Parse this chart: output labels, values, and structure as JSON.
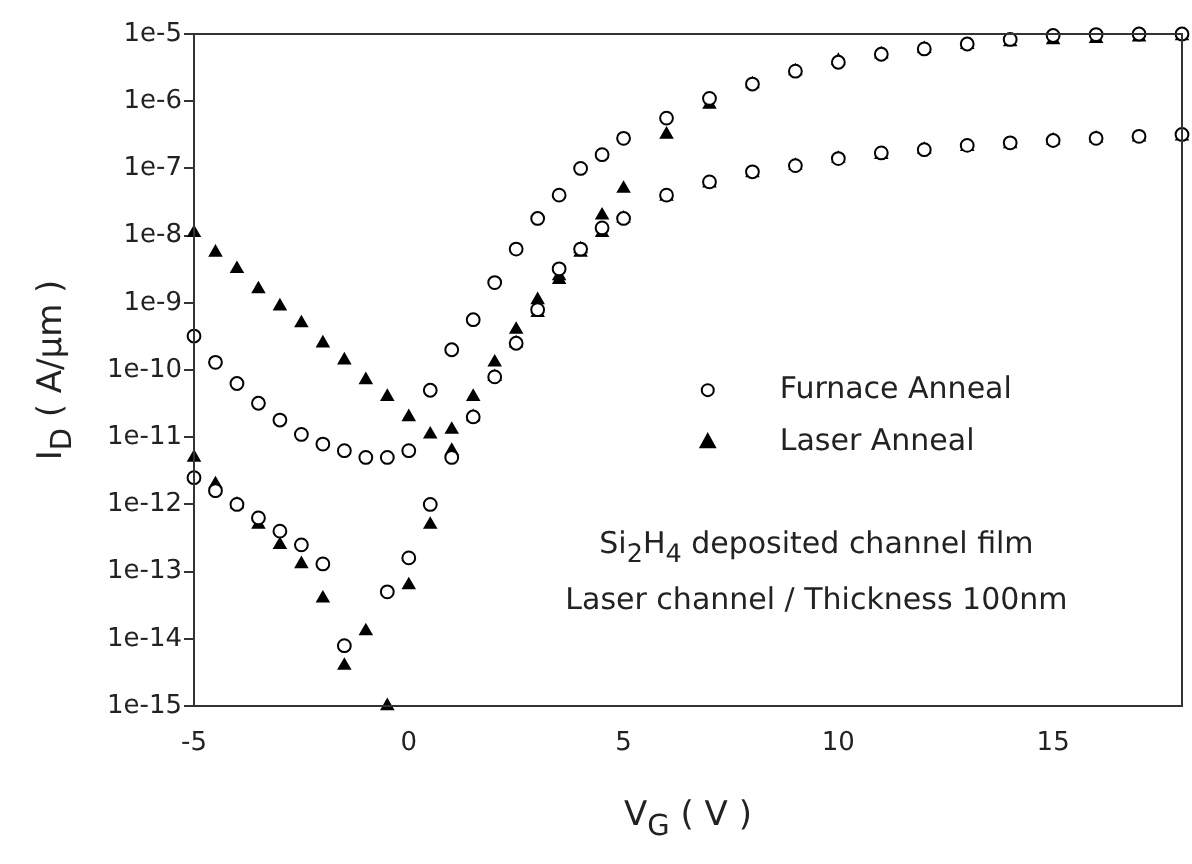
{
  "chart_data": {
    "type": "scatter",
    "xlabel": "V$_{G}$ ( V )",
    "ylabel": "I$_{D}$ ( A/µm )",
    "log": "y",
    "xlim": [
      -5,
      18
    ],
    "xticks": [
      -5,
      0,
      5,
      10,
      15
    ],
    "ylim": [
      1e-15,
      1e-05
    ],
    "yticks": [
      {
        "value": 1e-15,
        "label": "1e-15"
      },
      {
        "value": 1e-14,
        "label": "1e-14"
      },
      {
        "value": 1e-13,
        "label": "1e-13"
      },
      {
        "value": 1e-12,
        "label": "1e-12"
      },
      {
        "value": 1e-11,
        "label": "1e-11"
      },
      {
        "value": 1e-10,
        "label": "1e-10"
      },
      {
        "value": 1e-09,
        "label": "1e-9"
      },
      {
        "value": 1e-08,
        "label": "1e-8"
      },
      {
        "value": 1e-07,
        "label": "1e-7"
      },
      {
        "value": 1e-06,
        "label": "1e-6"
      },
      {
        "value": 1e-05,
        "label": "1e-5"
      }
    ],
    "grid": false,
    "legend": "right",
    "annotations": [
      "Si$_{2}$H$_{4}$ deposited channel film",
      "Laser channel / Thickness 100nm"
    ],
    "series": [
      {
        "name": "Furnace Anneal",
        "color": "#000000",
        "marker": "circle",
        "x": [
          -5,
          -4.5,
          -4,
          -3.5,
          -3,
          -2.5,
          -2,
          -1.5,
          -1,
          -0.5,
          0,
          0.5,
          1,
          1.5,
          2,
          2.5,
          3,
          3.5,
          4,
          4.5,
          5,
          6,
          7,
          8,
          9,
          10,
          11,
          12,
          13,
          14,
          15,
          16,
          17,
          18,
          -5,
          -4.5,
          -4,
          -3.5,
          -3,
          -2.5,
          -2,
          -1.5,
          -0.5,
          0,
          0.5,
          1,
          1.5,
          2,
          2.5,
          3,
          3.5,
          4,
          4.5,
          5,
          6,
          7,
          8,
          9,
          10,
          11,
          12,
          13,
          14,
          15,
          16,
          17,
          18
        ],
        "values": [
          3.2e-10,
          1.3e-10,
          6.3e-11,
          3.2e-11,
          1.8e-11,
          1.1e-11,
          7.9e-12,
          6.3e-12,
          5e-12,
          5e-12,
          6.3e-12,
          5e-11,
          2e-10,
          5.6e-10,
          2e-09,
          6.3e-09,
          1.8e-08,
          4e-08,
          1e-07,
          1.6e-07,
          2.8e-07,
          5.6e-07,
          1.1e-06,
          1.8e-06,
          2.8e-06,
          3.8e-06,
          5e-06,
          6e-06,
          7.1e-06,
          8.3e-06,
          9.5e-06,
          9.8e-06,
          1e-05,
          1e-05,
          2.5e-12,
          1.6e-12,
          1e-12,
          6.3e-13,
          4e-13,
          2.5e-13,
          1.3e-13,
          7.9e-15,
          5e-14,
          1.6e-13,
          1e-12,
          5e-12,
          2e-11,
          7.9e-11,
          2.5e-10,
          7.9e-10,
          3.2e-09,
          6.3e-09,
          1.3e-08,
          1.8e-08,
          4e-08,
          6.3e-08,
          8.9e-08,
          1.1e-07,
          1.4e-07,
          1.7e-07,
          1.9e-07,
          2.2e-07,
          2.4e-07,
          2.6e-07,
          2.8e-07,
          3e-07,
          3.2e-07
        ]
      },
      {
        "name": "Laser Anneal",
        "color": "#000000",
        "marker": "triangle",
        "x": [
          -5,
          -4.5,
          -4,
          -3.5,
          -3,
          -2.5,
          -2,
          -1.5,
          -1,
          -0.5,
          0,
          0.5,
          1,
          1.5,
          2,
          2.5,
          3,
          3.5,
          4,
          4.5,
          5,
          6,
          7,
          8,
          9,
          10,
          11,
          12,
          13,
          14,
          15,
          16,
          17,
          18,
          -5,
          -4.5,
          -4,
          -3.5,
          -3,
          -2.5,
          -2,
          -1.5,
          -1,
          -0.5,
          0,
          0.5,
          1,
          1.5,
          2,
          2.5,
          3,
          3.5,
          4,
          4.5,
          5,
          6,
          7,
          8,
          9,
          10,
          11,
          12,
          13,
          14,
          15,
          16,
          17,
          18
        ],
        "values": [
          1.1e-08,
          5.6e-09,
          3.2e-09,
          1.6e-09,
          8.9e-10,
          5e-10,
          2.5e-10,
          1.4e-10,
          7.1e-11,
          4e-11,
          2e-11,
          1.1e-11,
          1.3e-11,
          4e-11,
          1.3e-10,
          4e-10,
          1.1e-09,
          2.2e-09,
          6.3e-09,
          2e-08,
          5e-08,
          3.2e-07,
          8.9e-07,
          1.8e-06,
          2.8e-06,
          4e-06,
          5e-06,
          6e-06,
          6.9e-06,
          7.6e-06,
          8.1e-06,
          8.5e-06,
          8.9e-06,
          9.3e-06,
          5e-12,
          2e-12,
          1e-12,
          5e-13,
          2.5e-13,
          1.3e-13,
          4e-14,
          4e-15,
          1.3e-14,
          1e-15,
          6.3e-14,
          5e-13,
          6.3e-12,
          2e-11,
          7.9e-11,
          2.5e-10,
          7.1e-10,
          2.5e-09,
          5.6e-09,
          1.1e-08,
          1.8e-08,
          3.8e-08,
          6e-08,
          8.5e-08,
          1.1e-07,
          1.4e-07,
          1.6e-07,
          1.9e-07,
          2.1e-07,
          2.3e-07,
          2.6e-07,
          2.8e-07,
          2.9e-07,
          3e-07
        ]
      }
    ]
  }
}
